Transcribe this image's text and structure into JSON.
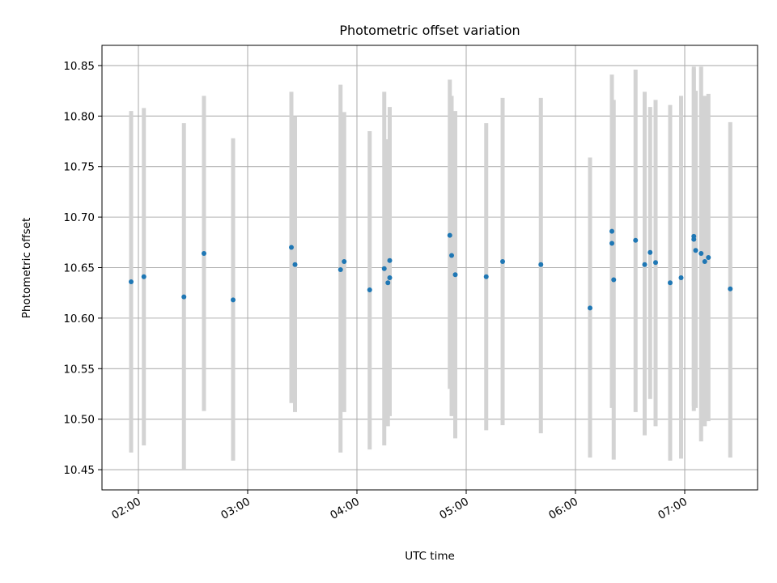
{
  "chart_data": {
    "type": "scatter",
    "title": "Photometric offset variation",
    "xlabel": "UTC time",
    "ylabel": "Photometric offset",
    "grid": true,
    "legend": "none",
    "colors": {
      "point": "#1f77b4",
      "errorbar": "#d3d3d3",
      "grid": "#b0b0b0",
      "axes": "#000000"
    },
    "xlim": [
      "01:40",
      "07:40"
    ],
    "ylim": [
      10.43,
      10.87
    ],
    "x_ticks": [
      "02:00",
      "03:00",
      "04:00",
      "05:00",
      "06:00",
      "07:00"
    ],
    "y_ticks": [
      "10.45",
      "10.50",
      "10.55",
      "10.60",
      "10.65",
      "10.70",
      "10.75",
      "10.80",
      "10.85"
    ],
    "points": [
      {
        "x": "01:56",
        "y": 10.636,
        "ylow": 10.467,
        "yhigh": 10.805
      },
      {
        "x": "02:03",
        "y": 10.641,
        "ylow": 10.474,
        "yhigh": 10.808
      },
      {
        "x": "02:25",
        "y": 10.621,
        "ylow": 10.45,
        "yhigh": 10.793
      },
      {
        "x": "02:36",
        "y": 10.664,
        "ylow": 10.508,
        "yhigh": 10.82
      },
      {
        "x": "02:52",
        "y": 10.618,
        "ylow": 10.459,
        "yhigh": 10.778
      },
      {
        "x": "03:24",
        "y": 10.67,
        "ylow": 10.516,
        "yhigh": 10.824
      },
      {
        "x": "03:26",
        "y": 10.653,
        "ylow": 10.507,
        "yhigh": 10.8
      },
      {
        "x": "03:51",
        "y": 10.648,
        "ylow": 10.467,
        "yhigh": 10.831
      },
      {
        "x": "03:53",
        "y": 10.656,
        "ylow": 10.507,
        "yhigh": 10.804
      },
      {
        "x": "04:07",
        "y": 10.628,
        "ylow": 10.47,
        "yhigh": 10.785
      },
      {
        "x": "04:15",
        "y": 10.649,
        "ylow": 10.474,
        "yhigh": 10.824
      },
      {
        "x": "04:17",
        "y": 10.635,
        "ylow": 10.493,
        "yhigh": 10.777
      },
      {
        "x": "04:18",
        "y": 10.64,
        "ylow": 10.503,
        "yhigh": 10.8
      },
      {
        "x": "04:18",
        "y": 10.657,
        "ylow": 10.504,
        "yhigh": 10.809
      },
      {
        "x": "04:51",
        "y": 10.682,
        "ylow": 10.53,
        "yhigh": 10.836
      },
      {
        "x": "04:52",
        "y": 10.662,
        "ylow": 10.503,
        "yhigh": 10.82
      },
      {
        "x": "04:54",
        "y": 10.643,
        "ylow": 10.481,
        "yhigh": 10.805
      },
      {
        "x": "05:11",
        "y": 10.641,
        "ylow": 10.489,
        "yhigh": 10.793
      },
      {
        "x": "05:20",
        "y": 10.656,
        "ylow": 10.494,
        "yhigh": 10.818
      },
      {
        "x": "05:41",
        "y": 10.653,
        "ylow": 10.486,
        "yhigh": 10.818
      },
      {
        "x": "06:08",
        "y": 10.61,
        "ylow": 10.462,
        "yhigh": 10.759
      },
      {
        "x": "06:20",
        "y": 10.686,
        "ylow": 10.532,
        "yhigh": 10.841
      },
      {
        "x": "06:20",
        "y": 10.674,
        "ylow": 10.511,
        "yhigh": 10.837
      },
      {
        "x": "06:21",
        "y": 10.638,
        "ylow": 10.46,
        "yhigh": 10.816
      },
      {
        "x": "06:33",
        "y": 10.677,
        "ylow": 10.507,
        "yhigh": 10.846
      },
      {
        "x": "06:38",
        "y": 10.653,
        "ylow": 10.484,
        "yhigh": 10.824
      },
      {
        "x": "06:41",
        "y": 10.665,
        "ylow": 10.52,
        "yhigh": 10.809
      },
      {
        "x": "06:44",
        "y": 10.655,
        "ylow": 10.493,
        "yhigh": 10.816
      },
      {
        "x": "06:52",
        "y": 10.635,
        "ylow": 10.459,
        "yhigh": 10.811
      },
      {
        "x": "06:58",
        "y": 10.64,
        "ylow": 10.461,
        "yhigh": 10.82
      },
      {
        "x": "07:05",
        "y": 10.681,
        "ylow": 10.513,
        "yhigh": 10.849
      },
      {
        "x": "07:05",
        "y": 10.678,
        "ylow": 10.508,
        "yhigh": 10.847
      },
      {
        "x": "07:06",
        "y": 10.667,
        "ylow": 10.511,
        "yhigh": 10.825
      },
      {
        "x": "07:09",
        "y": 10.664,
        "ylow": 10.478,
        "yhigh": 10.849
      },
      {
        "x": "07:11",
        "y": 10.656,
        "ylow": 10.493,
        "yhigh": 10.82
      },
      {
        "x": "07:13",
        "y": 10.66,
        "ylow": 10.498,
        "yhigh": 10.822
      },
      {
        "x": "07:25",
        "y": 10.629,
        "ylow": 10.462,
        "yhigh": 10.794
      }
    ]
  }
}
